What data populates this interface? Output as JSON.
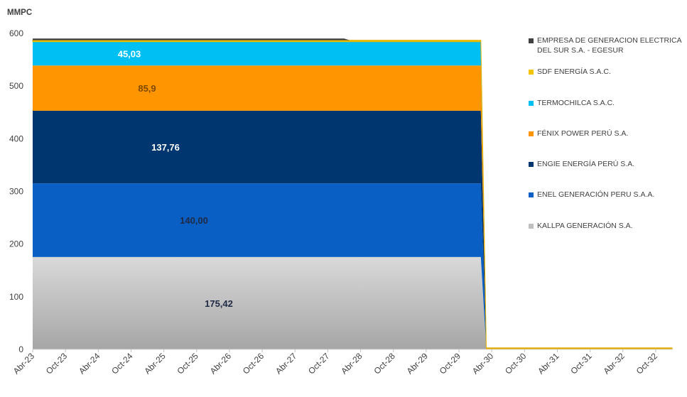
{
  "chart_data": {
    "type": "area",
    "stacked": true,
    "ylabel": "MMPC",
    "ylim": [
      0,
      600
    ],
    "yticks": [
      0,
      100,
      200,
      300,
      400,
      500,
      600
    ],
    "x_tick_labels": [
      "Abr-23",
      "Oct-23",
      "Abr-24",
      "Oct-24",
      "Abr-25",
      "Oct-25",
      "Abr-26",
      "Oct-26",
      "Abr-27",
      "Oct-27",
      "Abr-28",
      "Oct-28",
      "Abr-29",
      "Oct-29",
      "Abr-30",
      "Oct-30",
      "Abr-31",
      "Oct-31",
      "Abr-32",
      "Oct-32"
    ],
    "x_range": [
      0,
      117
    ],
    "gas_contract_end_month": 82,
    "series": [
      {
        "name": "KALLPA GENERACIÓN S.A.",
        "value": 175.42,
        "label": "175,42",
        "color": "#bfbfbf",
        "end_month": 82
      },
      {
        "name": "ENEL GENERACIÓN PERU S.A.A.",
        "value": 140.0,
        "label": "140,00",
        "color": "#0a5fc4",
        "end_month": 82
      },
      {
        "name": "ENGIE ENERGÍA PERÚ S.A.",
        "value": 137.76,
        "label": "137,76",
        "color": "#003670",
        "end_month": 82
      },
      {
        "name": "FÉNIX POWER PERÚ S.A.",
        "value": 85.9,
        "label": "85,9",
        "color": "#ff9500",
        "end_month": 82
      },
      {
        "name": "TERMOCHILCA S.A.C.",
        "value": 45.03,
        "label": "45,03",
        "color": "#00c0f3",
        "end_month": 82
      },
      {
        "name": "SDF ENERGÍA S.A.C.",
        "value": 3,
        "label": "",
        "color": "#f5c400",
        "end_month": 117
      },
      {
        "name": "EMPRESA DE GENERACION ELECTRICA DEL SUR S.A. - EGESUR",
        "value": 3,
        "label": "",
        "color": "#404040",
        "end_month": 57
      }
    ],
    "legend_order": [
      6,
      5,
      4,
      3,
      2,
      1,
      0
    ],
    "legend_position": "right"
  }
}
